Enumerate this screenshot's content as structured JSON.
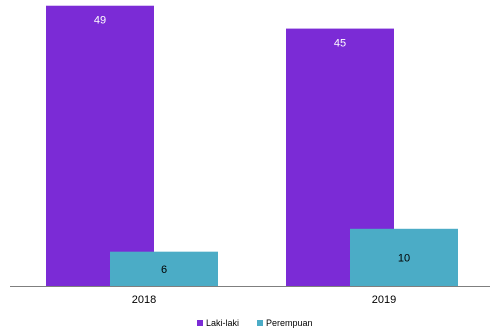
{
  "chart_data": {
    "type": "bar",
    "categories": [
      "2018",
      "2019"
    ],
    "series": [
      {
        "name": "Laki-laki",
        "values": [
          49,
          45
        ],
        "color": "#7B2BD6",
        "label_color": "#ffffff"
      },
      {
        "name": "Perempuan",
        "values": [
          6,
          10
        ],
        "color": "#4BACC6",
        "label_color": "#000000"
      }
    ],
    "title": "",
    "xlabel": "",
    "ylabel": "",
    "ylim": [
      0,
      50
    ],
    "grid": false,
    "legend_position": "bottom"
  }
}
